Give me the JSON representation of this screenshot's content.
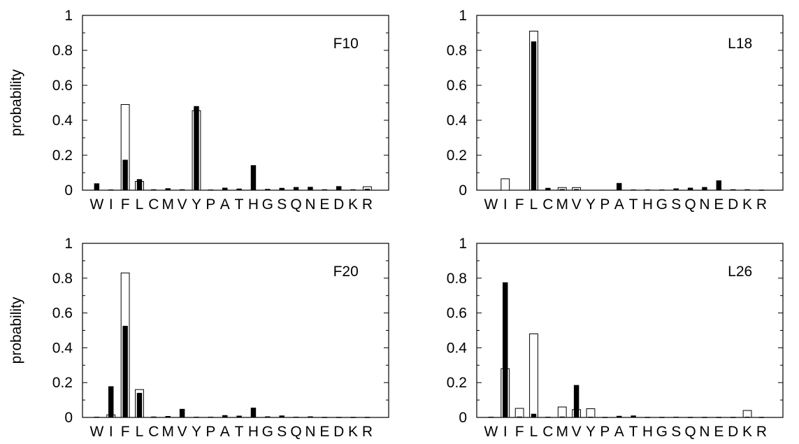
{
  "colors": {
    "open_bar_fill": "#ffffff",
    "solid_bar_fill": "#000000",
    "stroke": "#000000"
  },
  "chart_data": [
    {
      "type": "bar",
      "title": "F10",
      "xlabel": "",
      "ylabel": "probability",
      "ylim": [
        0,
        1
      ],
      "yticks": [
        "0",
        "0.2",
        "0.4",
        "0.6",
        "0.8",
        "1"
      ],
      "categories": [
        "W",
        "I",
        "F",
        "L",
        "C",
        "M",
        "V",
        "Y",
        "P",
        "A",
        "T",
        "H",
        "G",
        "S",
        "Q",
        "N",
        "E",
        "D",
        "K",
        "R"
      ],
      "series": [
        {
          "style": "open",
          "values": [
            0,
            0,
            0.49,
            0.05,
            0,
            0,
            0,
            0.455,
            0,
            0,
            0,
            0,
            0,
            0,
            0,
            0,
            0,
            0,
            0,
            0.02
          ]
        },
        {
          "style": "solid",
          "values": [
            0.038,
            0.003,
            0.173,
            0.062,
            0.004,
            0.01,
            0.004,
            0.48,
            0.003,
            0.013,
            0.008,
            0.142,
            0.006,
            0.012,
            0.017,
            0.018,
            0.004,
            0.022,
            0.004,
            0.007
          ]
        }
      ]
    },
    {
      "type": "bar",
      "title": "L18",
      "xlabel": "",
      "ylabel": "",
      "ylim": [
        0,
        1
      ],
      "yticks": [
        "0",
        "0.2",
        "0.4",
        "0.6",
        "0.8",
        "1"
      ],
      "categories": [
        "W",
        "I",
        "F",
        "L",
        "C",
        "M",
        "V",
        "Y",
        "P",
        "A",
        "T",
        "H",
        "G",
        "S",
        "Q",
        "N",
        "E",
        "D",
        "K",
        "R"
      ],
      "series": [
        {
          "style": "open",
          "values": [
            0,
            0.065,
            0,
            0.91,
            0,
            0.015,
            0.015,
            0,
            0,
            0,
            0,
            0,
            0,
            0,
            0,
            0,
            0,
            0,
            0,
            0
          ]
        },
        {
          "style": "solid",
          "values": [
            0,
            0,
            0,
            0.85,
            0.012,
            0.005,
            0.005,
            0,
            0,
            0.04,
            0.003,
            0.003,
            0.003,
            0.009,
            0.013,
            0.017,
            0.055,
            0.004,
            0.004,
            0.002
          ]
        }
      ]
    },
    {
      "type": "bar",
      "title": "F20",
      "xlabel": "",
      "ylabel": "probability",
      "ylim": [
        0,
        1
      ],
      "yticks": [
        "0",
        "0.2",
        "0.4",
        "0.6",
        "0.8",
        "1"
      ],
      "categories": [
        "W",
        "I",
        "F",
        "L",
        "C",
        "M",
        "V",
        "Y",
        "P",
        "A",
        "T",
        "H",
        "G",
        "S",
        "Q",
        "N",
        "E",
        "D",
        "K",
        "R"
      ],
      "series": [
        {
          "style": "open",
          "values": [
            0,
            0.015,
            0.83,
            0.16,
            0,
            0,
            0,
            0,
            0,
            0,
            0,
            0,
            0,
            0,
            0,
            0,
            0,
            0,
            0,
            0
          ]
        },
        {
          "style": "solid",
          "values": [
            0.003,
            0.178,
            0.525,
            0.14,
            0.004,
            0.007,
            0.048,
            0.003,
            0.003,
            0.012,
            0.009,
            0.055,
            0.005,
            0.01,
            0.003,
            0.005,
            0.002,
            0.002,
            0.002,
            0.002
          ]
        }
      ]
    },
    {
      "type": "bar",
      "title": "L26",
      "xlabel": "",
      "ylabel": "",
      "ylim": [
        0,
        1
      ],
      "yticks": [
        "0",
        "0.2",
        "0.4",
        "0.6",
        "0.8",
        "1"
      ],
      "categories": [
        "W",
        "I",
        "F",
        "L",
        "C",
        "M",
        "V",
        "Y",
        "P",
        "A",
        "T",
        "H",
        "G",
        "S",
        "Q",
        "N",
        "E",
        "D",
        "K",
        "R"
      ],
      "series": [
        {
          "style": "open",
          "values": [
            0,
            0.28,
            0.052,
            0.48,
            0,
            0.06,
            0.045,
            0.05,
            0,
            0,
            0,
            0,
            0,
            0,
            0,
            0,
            0,
            0,
            0.04,
            0
          ]
        },
        {
          "style": "solid",
          "values": [
            0.003,
            0.775,
            0.004,
            0.02,
            0.003,
            0.004,
            0.185,
            0.003,
            0.002,
            0.008,
            0.01,
            0.002,
            0.002,
            0.003,
            0.002,
            0.002,
            0.002,
            0.002,
            0.003,
            0.002
          ]
        }
      ]
    }
  ]
}
